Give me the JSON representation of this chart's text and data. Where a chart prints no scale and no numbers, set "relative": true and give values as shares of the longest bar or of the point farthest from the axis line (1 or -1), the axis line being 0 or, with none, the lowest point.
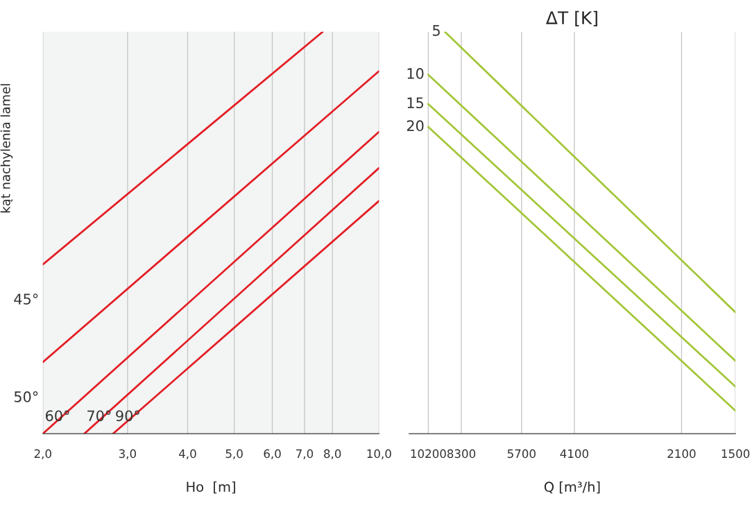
{
  "chart_data": [
    {
      "type": "line",
      "relative": true,
      "ylabel": "kąt nachylenia lamel",
      "xlabel": "Ho  [m]",
      "log": "x",
      "xlim": [
        2,
        10
      ],
      "xticks": [
        {
          "value": 2,
          "label": "2,0"
        },
        {
          "value": 3,
          "label": "3,0"
        },
        {
          "value": 4,
          "label": "4,0"
        },
        {
          "value": 5,
          "label": "5,0"
        },
        {
          "value": 6,
          "label": "6,0"
        },
        {
          "value": 7,
          "label": "7,0"
        },
        {
          "value": 8,
          "label": "8,0"
        },
        {
          "value": 10,
          "label": "10,0"
        }
      ],
      "grid": "x",
      "legend": false,
      "series": [
        {
          "name": "45°",
          "color": "#e31e24",
          "x": [
            2,
            7.64
          ],
          "values": [
            0.421,
            1.0
          ]
        },
        {
          "name": "50°",
          "color": "#e31e24",
          "x": [
            2,
            10
          ],
          "values": [
            0.178,
            0.902
          ]
        },
        {
          "name": "60°",
          "color": "#e31e24",
          "x": [
            2,
            10
          ],
          "values": [
            0.0,
            0.751
          ]
        },
        {
          "name": "70°",
          "color": "#e31e24",
          "x": [
            2.44,
            10
          ],
          "values": [
            0.0,
            0.661
          ]
        },
        {
          "name": "90°",
          "color": "#e31e24",
          "x": [
            2.8,
            10
          ],
          "values": [
            0.0,
            0.579
          ]
        }
      ]
    },
    {
      "type": "line",
      "relative": true,
      "title": "ΔT [K]",
      "xlabel": "Q [m³/h]",
      "log": "x",
      "xlim": [
        11500,
        1500
      ],
      "xticks": [
        10200,
        8300,
        5700,
        4100,
        2100,
        1500
      ],
      "grid": "x",
      "legend": false,
      "series": [
        {
          "name": "5",
          "color": "#a4c639",
          "x": [
            9200,
            1500
          ],
          "values": [
            1.0,
            0.302
          ]
        },
        {
          "name": "10",
          "color": "#a4c639",
          "x": [
            10200,
            1500
          ],
          "values": [
            0.893,
            0.181
          ]
        },
        {
          "name": "15",
          "color": "#a4c639",
          "x": [
            10200,
            1500
          ],
          "values": [
            0.82,
            0.117
          ]
        },
        {
          "name": "20",
          "color": "#a4c639",
          "x": [
            10200,
            1500
          ],
          "values": [
            0.763,
            0.057
          ]
        }
      ]
    }
  ]
}
